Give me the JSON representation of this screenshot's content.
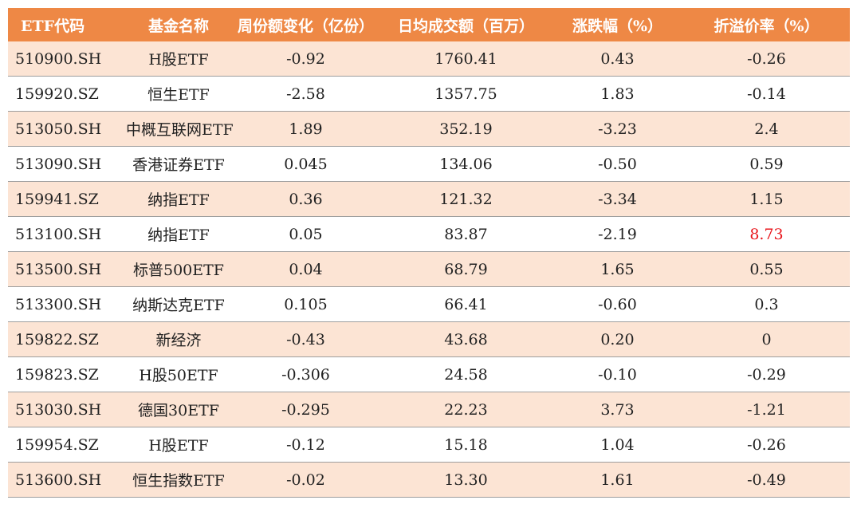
{
  "table": {
    "headers": [
      "ETF代码",
      "基金名称",
      "周份额变化（亿份）",
      "日均成交额（百万）",
      "涨跌幅（%）",
      "折溢价率（%）"
    ],
    "highlight_color": "#e8151b",
    "header_color": "#ee8845",
    "stripe_color": "#fce4d4",
    "rows": [
      {
        "code": "510900.SH",
        "name": "H股ETF",
        "share_change": "-0.92",
        "avg_turnover": "1760.41",
        "change_pct": "0.43",
        "premium": "-0.26"
      },
      {
        "code": "159920.SZ",
        "name": "恒生ETF",
        "share_change": "-2.58",
        "avg_turnover": "1357.75",
        "change_pct": "1.83",
        "premium": "-0.14"
      },
      {
        "code": "513050.SH",
        "name": "中概互联网ETF",
        "share_change": "1.89",
        "avg_turnover": "352.19",
        "change_pct": "-3.23",
        "premium": "2.4"
      },
      {
        "code": "513090.SH",
        "name": "香港证券ETF",
        "share_change": "0.045",
        "avg_turnover": "134.06",
        "change_pct": "-0.50",
        "premium": "0.59"
      },
      {
        "code": "159941.SZ",
        "name": "纳指ETF",
        "share_change": "0.36",
        "avg_turnover": "121.32",
        "change_pct": "-3.34",
        "premium": "1.15"
      },
      {
        "code": "513100.SH",
        "name": "纳指ETF",
        "share_change": "0.05",
        "avg_turnover": "83.87",
        "change_pct": "-2.19",
        "premium": "8.73"
      },
      {
        "code": "513500.SH",
        "name": "标普500ETF",
        "share_change": "0.04",
        "avg_turnover": "68.79",
        "change_pct": "1.65",
        "premium": "0.55"
      },
      {
        "code": "513300.SH",
        "name": "纳斯达克ETF",
        "share_change": "0.105",
        "avg_turnover": "66.41",
        "change_pct": "-0.60",
        "premium": "0.3"
      },
      {
        "code": "159822.SZ",
        "name": "新经济",
        "share_change": "-0.43",
        "avg_turnover": "43.68",
        "change_pct": "0.20",
        "premium": "0"
      },
      {
        "code": "159823.SZ",
        "name": "H股50ETF",
        "share_change": "-0.306",
        "avg_turnover": "24.58",
        "change_pct": "-0.10",
        "premium": "-0.29"
      },
      {
        "code": "513030.SH",
        "name": "德国30ETF",
        "share_change": "-0.295",
        "avg_turnover": "22.23",
        "change_pct": "3.73",
        "premium": "-1.21"
      },
      {
        "code": "159954.SZ",
        "name": "H股ETF",
        "share_change": "-0.12",
        "avg_turnover": "15.18",
        "change_pct": "1.04",
        "premium": "-0.26"
      },
      {
        "code": "513600.SH",
        "name": "恒生指数ETF",
        "share_change": "-0.02",
        "avg_turnover": "13.30",
        "change_pct": "1.61",
        "premium": "-0.49"
      }
    ]
  }
}
